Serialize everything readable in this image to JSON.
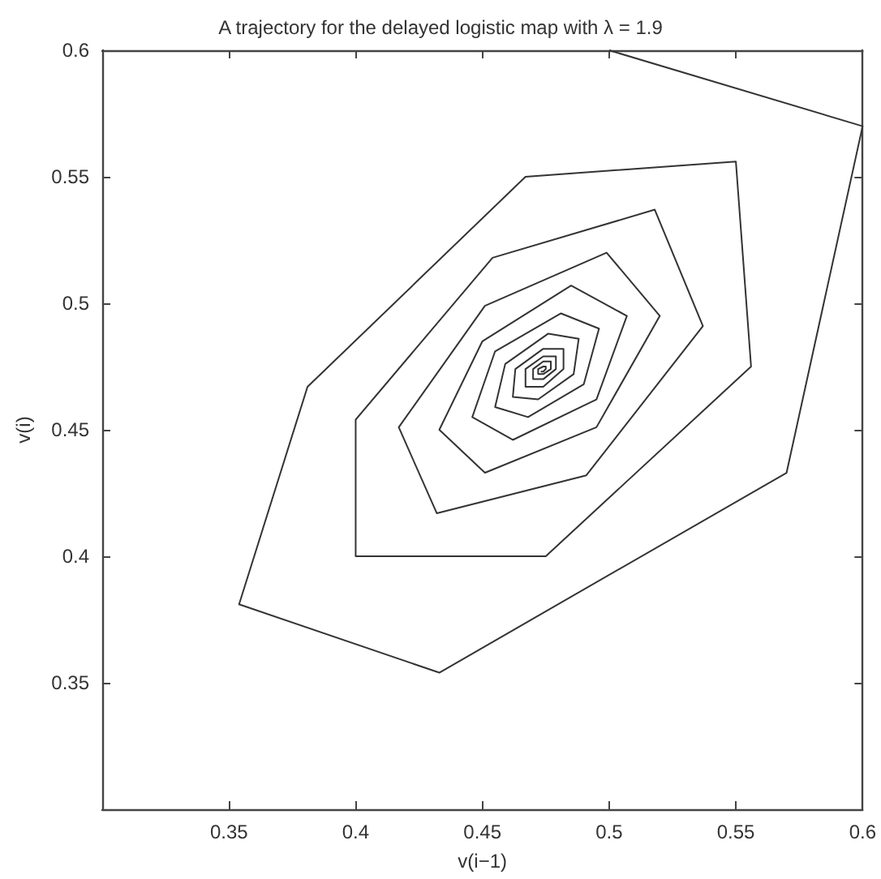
{
  "chart_data": {
    "type": "line",
    "title": "A trajectory for the delayed logistic map with λ = 1.9",
    "xlabel": "v(i−1)",
    "ylabel": "v(i)",
    "x": [
      0.5,
      0.6,
      0.57,
      0.433,
      0.354,
      0.381,
      0.467,
      0.55,
      0.556,
      0.475,
      0.4,
      0.4,
      0.454,
      0.518,
      0.537,
      0.491,
      0.432,
      0.417,
      0.451,
      0.499,
      0.52,
      0.495,
      0.451,
      0.433,
      0.45,
      0.485,
      0.507,
      0.495,
      0.462,
      0.446,
      0.455,
      0.481,
      0.496,
      0.49,
      0.468,
      0.455,
      0.459,
      0.476,
      0.488,
      0.486,
      0.472,
      0.462,
      0.463,
      0.474,
      0.482,
      0.482,
      0.474,
      0.467,
      0.467,
      0.474,
      0.479,
      0.479,
      0.474,
      0.47,
      0.47,
      0.474,
      0.477,
      0.477,
      0.474,
      0.472,
      0.472,
      0.474,
      0.475,
      0.475,
      0.474,
      0.473
    ],
    "series": [
      {
        "color": "#333333",
        "values": [
          0.6,
          0.57,
          0.433,
          0.354,
          0.381,
          0.467,
          0.55,
          0.556,
          0.475,
          0.4,
          0.4,
          0.454,
          0.518,
          0.537,
          0.491,
          0.432,
          0.417,
          0.451,
          0.499,
          0.52,
          0.495,
          0.451,
          0.433,
          0.45,
          0.485,
          0.507,
          0.495,
          0.462,
          0.446,
          0.455,
          0.481,
          0.496,
          0.49,
          0.468,
          0.455,
          0.459,
          0.476,
          0.488,
          0.486,
          0.472,
          0.462,
          0.463,
          0.474,
          0.482,
          0.482,
          0.474,
          0.467,
          0.467,
          0.474,
          0.479,
          0.479,
          0.474,
          0.47,
          0.47,
          0.474,
          0.477,
          0.477,
          0.474,
          0.472,
          0.472,
          0.474,
          0.475,
          0.475,
          0.474,
          0.473,
          0.473
        ]
      }
    ],
    "xlim": [
      0.3,
      0.6
    ],
    "ylim": [
      0.3,
      0.6
    ],
    "xticks": [
      0.35,
      0.4,
      0.45,
      0.5,
      0.55,
      0.6
    ],
    "yticks": [
      0.35,
      0.4,
      0.45,
      0.5,
      0.55,
      0.6
    ],
    "marker": "none",
    "line_style": "solid"
  }
}
